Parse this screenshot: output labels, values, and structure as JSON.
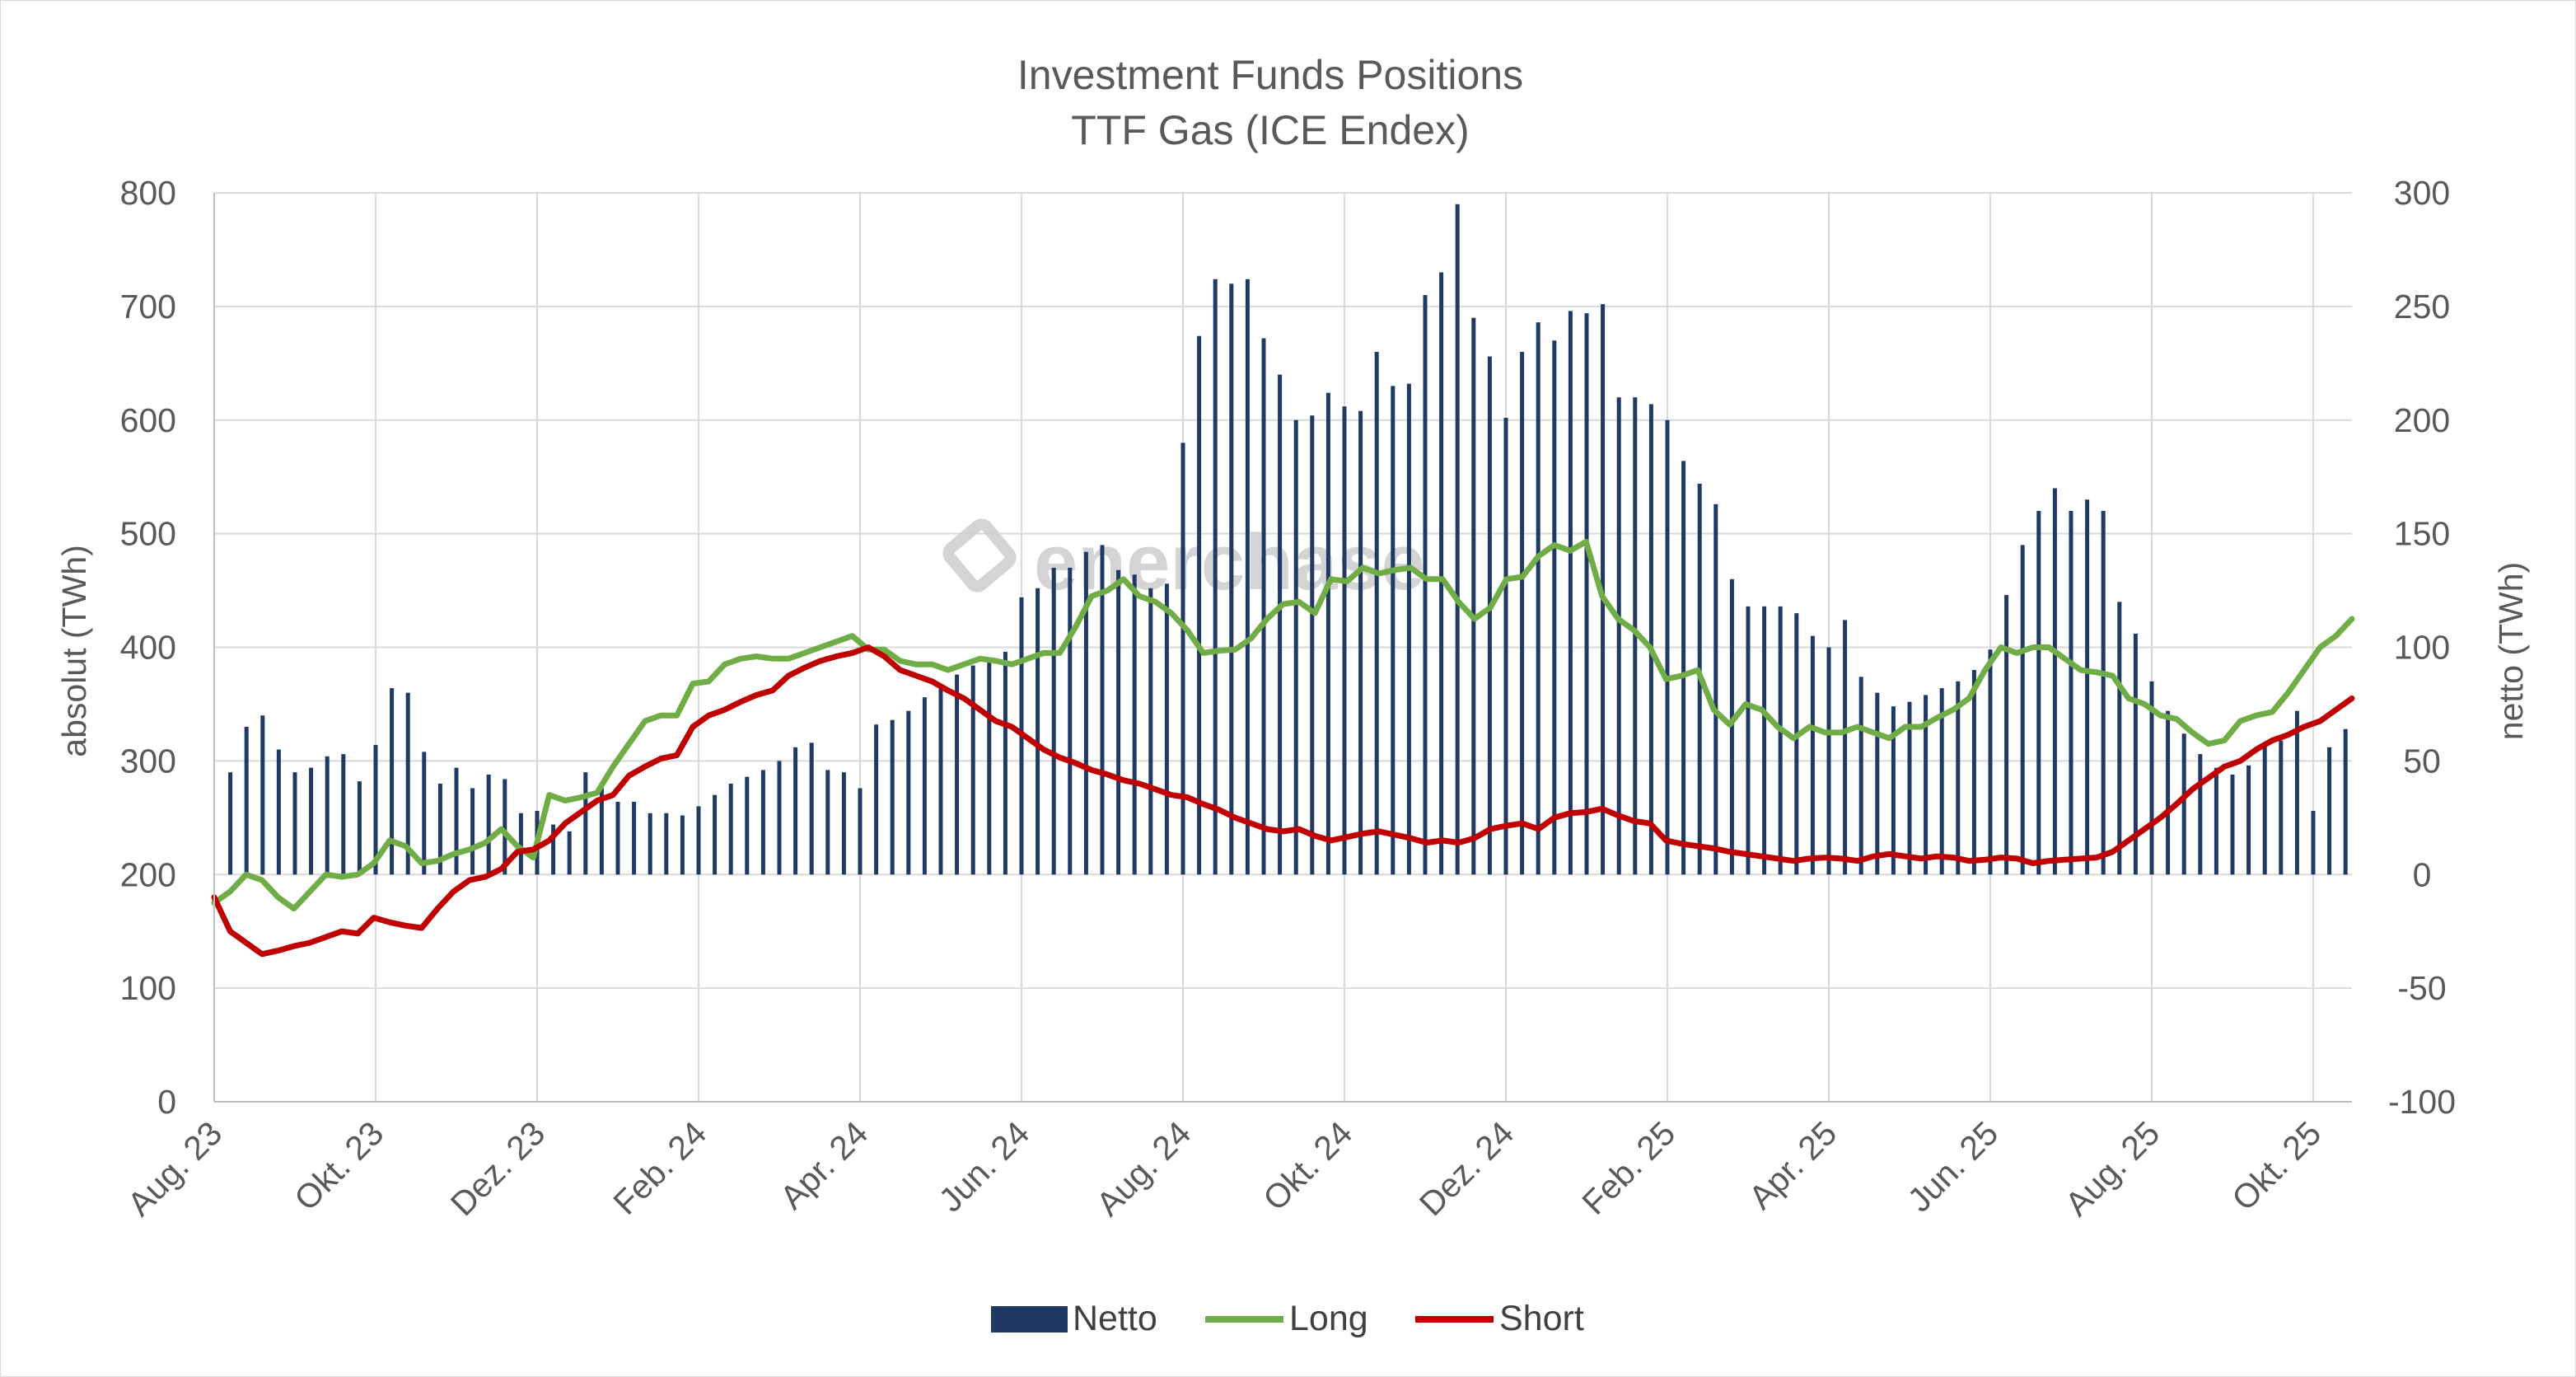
{
  "chart_data": {
    "type": "bar+line",
    "title": [
      "Investment Funds Positions",
      "TTF Gas (ICE Endex)"
    ],
    "ylabel_left": "absolut (TWh)",
    "ylabel_right": "netto (TWh)",
    "ylim_left": [
      0,
      800
    ],
    "ylim_right": [
      -100,
      300
    ],
    "yticks_left": [
      "0",
      "100",
      "200",
      "300",
      "400",
      "500",
      "600",
      "700",
      "800"
    ],
    "yticks_right": [
      "-100",
      "-50",
      "0",
      "50",
      "100",
      "150",
      "200",
      "250",
      "300"
    ],
    "xtick_labels": [
      "Aug. 23",
      "Okt. 23",
      "Dez. 23",
      "Feb. 24",
      "Apr. 24",
      "Jun. 24",
      "Aug. 24",
      "Okt. 24",
      "Dez. 24",
      "Feb. 25",
      "Apr. 25",
      "Jun. 25",
      "Aug. 25",
      "Okt. 25"
    ],
    "xtick_week_index": [
      0,
      10,
      20,
      30,
      40,
      50,
      60,
      70,
      80,
      90,
      100,
      110,
      120,
      130
    ],
    "grid": true,
    "legend_position": "bottom-center",
    "watermark": "enerchase",
    "series": [
      {
        "name": "Netto",
        "type": "bar",
        "axis": "right",
        "color": "#1f3864",
        "values": [
          0,
          45,
          65,
          70,
          55,
          45,
          47,
          52,
          53,
          41,
          57,
          82,
          80,
          54,
          40,
          47,
          38,
          44,
          42,
          27,
          28,
          22,
          19,
          45,
          38,
          32,
          32,
          27,
          27,
          26,
          30,
          35,
          40,
          43,
          46,
          50,
          56,
          58,
          46,
          45,
          38,
          66,
          68,
          72,
          78,
          82,
          88,
          92,
          94,
          98,
          122,
          126,
          135,
          135,
          142,
          145,
          134,
          132,
          126,
          128,
          190,
          237,
          262,
          260,
          262,
          236,
          220,
          200,
          202,
          212,
          206,
          204,
          230,
          215,
          216,
          255,
          265,
          295,
          245,
          228,
          201,
          230,
          243,
          235,
          248,
          247,
          251,
          210,
          210,
          207,
          200,
          182,
          172,
          163,
          130,
          118,
          118,
          118,
          115,
          105,
          100,
          112,
          87,
          80,
          74,
          76,
          79,
          82,
          85,
          90,
          99,
          123,
          145,
          160,
          170,
          160,
          165,
          160,
          120,
          106,
          85,
          72,
          62,
          53,
          47,
          44,
          48,
          57,
          59,
          72,
          28,
          56,
          64
        ],
        "bar_display_floor_right": 0
      },
      {
        "name": "Long",
        "type": "line",
        "axis": "left",
        "color": "#70ad47",
        "values": [
          175,
          185,
          200,
          195,
          180,
          170,
          185,
          200,
          198,
          200,
          210,
          230,
          225,
          210,
          212,
          218,
          222,
          228,
          240,
          225,
          215,
          270,
          265,
          268,
          272,
          295,
          315,
          335,
          340,
          340,
          368,
          370,
          385,
          390,
          392,
          390,
          390,
          395,
          400,
          405,
          410,
          398,
          398,
          388,
          385,
          385,
          380,
          385,
          390,
          388,
          385,
          390,
          395,
          395,
          418,
          445,
          450,
          460,
          445,
          440,
          430,
          415,
          395,
          397,
          398,
          408,
          425,
          438,
          440,
          430,
          460,
          458,
          470,
          465,
          468,
          470,
          460,
          460,
          440,
          425,
          435,
          460,
          462,
          480,
          490,
          485,
          493,
          445,
          425,
          415,
          400,
          372,
          375,
          380,
          345,
          332,
          350,
          345,
          330,
          320,
          330,
          325,
          325,
          330,
          325,
          320,
          330,
          330,
          338,
          345,
          355,
          380,
          400,
          395,
          400,
          400,
          390,
          380,
          378,
          375,
          355,
          350,
          340,
          337,
          325,
          315,
          318,
          335,
          340,
          343,
          360,
          380,
          400,
          410,
          425
        ],
        "fit_first_n": 136
      },
      {
        "name": "Short",
        "type": "line",
        "axis": "left",
        "color": "#c00000",
        "values": [
          180,
          150,
          140,
          130,
          133,
          137,
          140,
          145,
          150,
          148,
          162,
          158,
          155,
          153,
          170,
          185,
          195,
          198,
          205,
          220,
          222,
          230,
          245,
          255,
          265,
          270,
          287,
          295,
          302,
          305,
          330,
          340,
          345,
          352,
          358,
          362,
          375,
          382,
          388,
          392,
          395,
          400,
          392,
          380,
          375,
          370,
          362,
          355,
          345,
          335,
          330,
          320,
          310,
          303,
          298,
          292,
          288,
          283,
          280,
          275,
          270,
          268,
          262,
          257,
          250,
          245,
          240,
          238,
          240,
          234,
          230,
          233,
          236,
          238,
          235,
          232,
          228,
          230,
          228,
          232,
          240,
          243,
          245,
          240,
          250,
          254,
          255,
          258,
          252,
          247,
          245,
          230,
          227,
          225,
          223,
          220,
          218,
          216,
          214,
          212,
          214,
          215,
          214,
          212,
          216,
          218,
          216,
          214,
          216,
          215,
          212,
          213,
          215,
          214,
          210,
          212,
          213,
          214,
          215,
          220,
          230,
          240,
          250,
          262,
          275,
          285,
          295,
          300,
          310,
          318,
          323,
          330,
          335,
          345,
          355
        ]
      }
    ]
  }
}
